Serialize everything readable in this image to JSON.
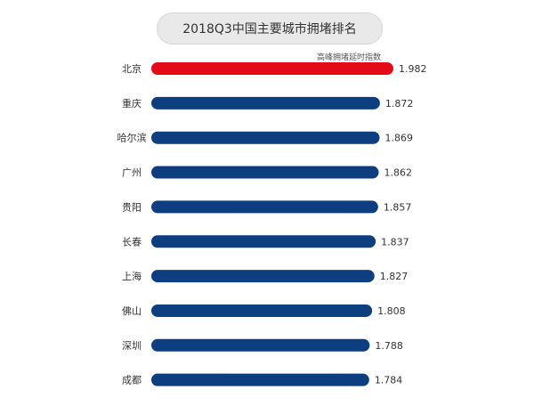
{
  "chart_data": {
    "type": "bar",
    "orientation": "horizontal",
    "title": "2018Q3中国主要城市拥堵排名",
    "series_label": "高峰拥堵延时指数",
    "categories": [
      "北京",
      "重庆",
      "哈尔滨",
      "广州",
      "贵阳",
      "长春",
      "上海",
      "佛山",
      "深圳",
      "成都"
    ],
    "values": [
      1.982,
      1.872,
      1.869,
      1.862,
      1.857,
      1.837,
      1.827,
      1.808,
      1.788,
      1.784
    ],
    "value_labels": [
      "1.982",
      "1.872",
      "1.869",
      "1.862",
      "1.857",
      "1.837",
      "1.827",
      "1.808",
      "1.788",
      "1.784"
    ],
    "highlight_index": 0,
    "colors": {
      "highlight": "#e30b17",
      "bar": "#0d3f80",
      "label": "#333333"
    },
    "grid": false,
    "legend": "none"
  }
}
